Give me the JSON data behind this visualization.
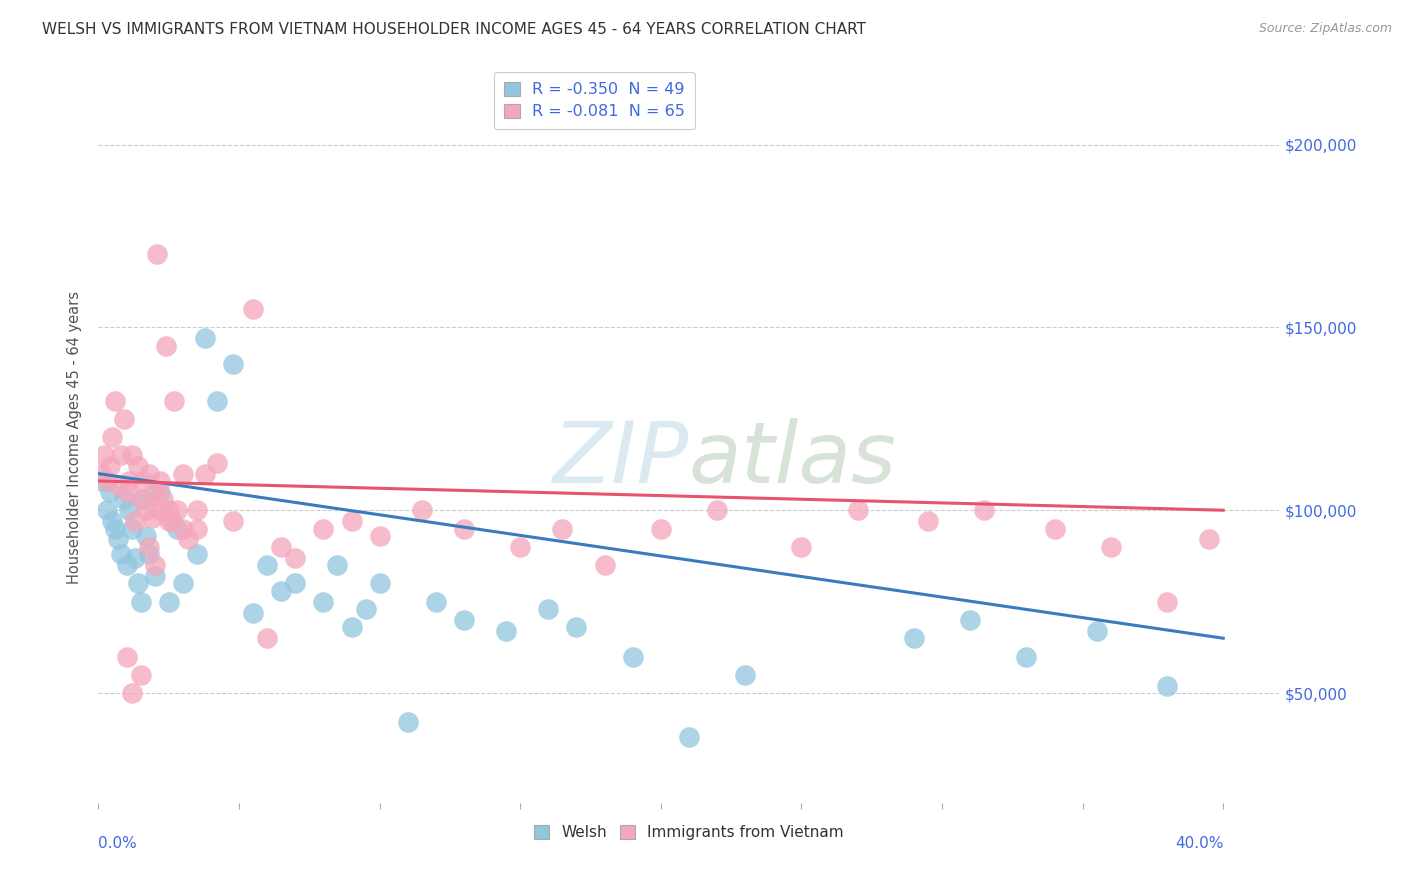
{
  "title": "WELSH VS IMMIGRANTS FROM VIETNAM HOUSEHOLDER INCOME AGES 45 - 64 YEARS CORRELATION CHART",
  "source": "Source: ZipAtlas.com",
  "ylabel": "Householder Income Ages 45 - 64 years",
  "ytick_values": [
    50000,
    100000,
    150000,
    200000
  ],
  "legend_welsh": "R = -0.350  N = 49",
  "legend_vietnam": "R = -0.081  N = 65",
  "welsh_color": "#92c5de",
  "vietnam_color": "#f4a6bb",
  "welsh_line_color": "#3a7bbf",
  "vietnam_line_color": "#e8536e",
  "background_color": "#ffffff",
  "xlim": [
    0.0,
    0.42
  ],
  "ylim": [
    20000,
    220000
  ],
  "welsh_scatter_x": [
    0.001,
    0.003,
    0.004,
    0.005,
    0.006,
    0.007,
    0.008,
    0.009,
    0.01,
    0.011,
    0.012,
    0.013,
    0.014,
    0.015,
    0.016,
    0.017,
    0.018,
    0.02,
    0.022,
    0.025,
    0.028,
    0.03,
    0.035,
    0.038,
    0.042,
    0.048,
    0.055,
    0.06,
    0.065,
    0.07,
    0.08,
    0.085,
    0.09,
    0.095,
    0.1,
    0.11,
    0.12,
    0.13,
    0.145,
    0.16,
    0.17,
    0.19,
    0.21,
    0.23,
    0.29,
    0.31,
    0.33,
    0.355,
    0.38
  ],
  "welsh_scatter_y": [
    108000,
    100000,
    105000,
    97000,
    95000,
    92000,
    88000,
    103000,
    85000,
    100000,
    95000,
    87000,
    80000,
    75000,
    103000,
    93000,
    88000,
    82000,
    105000,
    75000,
    95000,
    80000,
    88000,
    147000,
    130000,
    140000,
    72000,
    85000,
    78000,
    80000,
    75000,
    85000,
    68000,
    73000,
    80000,
    42000,
    75000,
    70000,
    67000,
    73000,
    68000,
    60000,
    38000,
    55000,
    65000,
    70000,
    60000,
    67000,
    52000
  ],
  "vietnam_scatter_x": [
    0.001,
    0.002,
    0.003,
    0.004,
    0.005,
    0.006,
    0.007,
    0.008,
    0.009,
    0.01,
    0.011,
    0.012,
    0.013,
    0.014,
    0.015,
    0.016,
    0.017,
    0.018,
    0.019,
    0.02,
    0.021,
    0.022,
    0.023,
    0.024,
    0.025,
    0.026,
    0.027,
    0.028,
    0.03,
    0.032,
    0.035,
    0.038,
    0.042,
    0.048,
    0.055,
    0.06,
    0.065,
    0.07,
    0.08,
    0.09,
    0.1,
    0.115,
    0.13,
    0.15,
    0.165,
    0.18,
    0.2,
    0.22,
    0.25,
    0.27,
    0.295,
    0.315,
    0.34,
    0.36,
    0.38,
    0.395,
    0.01,
    0.012,
    0.015,
    0.018,
    0.02,
    0.022,
    0.025,
    0.03,
    0.035
  ],
  "vietnam_scatter_y": [
    110000,
    115000,
    108000,
    112000,
    120000,
    130000,
    107000,
    115000,
    125000,
    105000,
    108000,
    115000,
    97000,
    112000,
    103000,
    108000,
    100000,
    110000,
    98000,
    105000,
    170000,
    108000,
    103000,
    145000,
    100000,
    97000,
    130000,
    100000,
    95000,
    92000,
    100000,
    110000,
    113000,
    97000,
    155000,
    65000,
    90000,
    87000,
    95000,
    97000,
    93000,
    100000,
    95000,
    90000,
    95000,
    85000,
    95000,
    100000,
    90000,
    100000,
    97000,
    100000,
    95000,
    90000,
    75000,
    92000,
    60000,
    50000,
    55000,
    90000,
    85000,
    100000,
    97000,
    110000,
    95000
  ]
}
